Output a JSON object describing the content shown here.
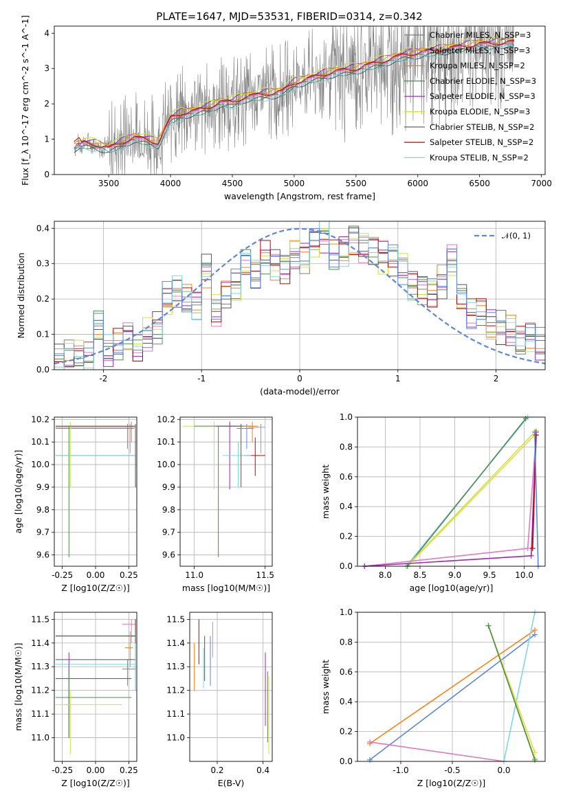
{
  "figure": {
    "title": "PLATE=1647, MJD=53531, FIBERID=0314, z=0.342"
  },
  "colors": {
    "grey": "#7f7f7f",
    "orange": "#ff7f0e",
    "lightorange": "#f28e2b",
    "purple": "#9c27b0",
    "yellowgreen": "#c7e83a",
    "darkgrey": "#555555",
    "red": "#c00000",
    "cyan": "#7fd6e6",
    "blue": "#5b86dc",
    "pink": "#e377c2",
    "green": "#4c8a4c",
    "gold": "#e8d84a"
  },
  "chart_data": [
    {
      "id": "spectrum",
      "type": "line",
      "title": "PLATE=1647, MJD=53531, FIBERID=0314, z=0.342",
      "xlabel": "wavelength [Angstrom, rest frame]",
      "ylabel": "Flux [f_λ 10^-17 erg cm^-2 s^-1 A^-1]",
      "xlim": [
        3060,
        7030
      ],
      "ylim": [
        0,
        4.2
      ],
      "xticks": [
        3500,
        4000,
        4500,
        5000,
        5500,
        6000,
        6500,
        7000
      ],
      "yticks": [
        0,
        1,
        2,
        3,
        4
      ],
      "grid": false,
      "legend_position": "top-right",
      "series": [
        {
          "name": "Chabrier MILES, N_SSP=3",
          "color": "#7f7f7f"
        },
        {
          "name": "Salpeter MILES, N_SSP=3",
          "color": "#e377c2"
        },
        {
          "name": "Kroupa MILES, N_SSP=2",
          "color": "#ff7f0e"
        },
        {
          "name": "Chabrier ELODIE, N_SSP=3",
          "color": "#4c8a4c"
        },
        {
          "name": "Salpeter ELODIE, N_SSP=3",
          "color": "#9c27b0"
        },
        {
          "name": "Kroupa ELODIE, N_SSP=3",
          "color": "#c7e83a"
        },
        {
          "name": "Chabrier STELIB, N_SSP=2",
          "color": "#555555"
        },
        {
          "name": "Salpeter STELIB, N_SSP=2",
          "color": "#c00000"
        },
        {
          "name": "Kroupa STELIB, N_SSP=2",
          "color": "#7fd6e6"
        }
      ],
      "model_curve": {
        "x": [
          3220,
          3300,
          3400,
          3500,
          3600,
          3700,
          3800,
          3900,
          4000,
          4100,
          4200,
          4300,
          4400,
          4500,
          4600,
          4700,
          4800,
          4900,
          5000,
          5100,
          5200,
          5300,
          5400,
          5500,
          5600,
          5700,
          5800,
          5900,
          6000,
          6100,
          6200,
          6300,
          6400,
          6500,
          6600,
          6700,
          6780
        ],
        "y": [
          0.8,
          0.9,
          0.85,
          0.75,
          0.9,
          1.05,
          1.0,
          0.9,
          1.6,
          1.75,
          1.8,
          1.9,
          2.05,
          2.05,
          2.2,
          2.25,
          2.3,
          2.35,
          2.6,
          2.7,
          2.8,
          2.9,
          2.95,
          3.0,
          3.1,
          3.2,
          3.3,
          3.4,
          3.45,
          3.5,
          3.55,
          3.6,
          3.65,
          3.7,
          3.7,
          3.75,
          3.75
        ]
      }
    },
    {
      "id": "residuals",
      "type": "line",
      "xlabel": "(data-model)/error",
      "ylabel": "Normed distribution",
      "xlim": [
        -2.5,
        2.5
      ],
      "ylim": [
        0,
        0.42
      ],
      "xticks": [
        -2,
        -1,
        0,
        1,
        2
      ],
      "yticks": [
        0.0,
        0.1,
        0.2,
        0.3,
        0.4
      ],
      "grid": true,
      "legend_position": "top-right",
      "gaussian": {
        "name": "𝒩(0, 1)",
        "color": "#5b86dc",
        "mean": 0,
        "sigma": 1
      },
      "histogram": {
        "bin_edges": [
          -2.5,
          -2.4,
          -2.3,
          -2.2,
          -2.1,
          -2.0,
          -1.9,
          -1.8,
          -1.7,
          -1.6,
          -1.5,
          -1.4,
          -1.3,
          -1.2,
          -1.1,
          -1.0,
          -0.9,
          -0.8,
          -0.7,
          -0.6,
          -0.5,
          -0.4,
          -0.3,
          -0.2,
          -0.1,
          0.0,
          0.1,
          0.2,
          0.3,
          0.4,
          0.5,
          0.6,
          0.7,
          0.8,
          0.9,
          1.0,
          1.1,
          1.2,
          1.3,
          1.4,
          1.5,
          1.6,
          1.7,
          1.8,
          1.9,
          2.0,
          2.1,
          2.2,
          2.3,
          2.4,
          2.5
        ],
        "values": [
          0.025,
          0.04,
          0.045,
          0.03,
          0.12,
          0.05,
          0.07,
          0.09,
          0.06,
          0.1,
          0.12,
          0.2,
          0.22,
          0.2,
          0.18,
          0.28,
          0.17,
          0.22,
          0.24,
          0.3,
          0.27,
          0.32,
          0.3,
          0.29,
          0.33,
          0.32,
          0.36,
          0.38,
          0.33,
          0.34,
          0.37,
          0.35,
          0.34,
          0.32,
          0.31,
          0.29,
          0.24,
          0.23,
          0.22,
          0.25,
          0.31,
          0.2,
          0.16,
          0.17,
          0.13,
          0.12,
          0.11,
          0.08,
          0.09,
          0.07
        ]
      }
    },
    {
      "id": "age-vs-Z",
      "type": "scatter",
      "xlabel": "Z [log10(Z/Z☉)]",
      "ylabel": "age [log10(age/yr)]",
      "xlim": [
        -0.31,
        0.31
      ],
      "ylim": [
        9.55,
        10.21
      ],
      "xticks": [
        -0.25,
        0.0,
        0.25
      ],
      "yticks": [
        9.6,
        9.7,
        9.8,
        9.9,
        10.0,
        10.1,
        10.2
      ],
      "grid": true
    },
    {
      "id": "age-vs-mass",
      "type": "scatter",
      "xlabel": "mass [log10(M/M☉)]",
      "ylabel": "",
      "xlim": [
        10.9,
        11.55
      ],
      "ylim": [
        9.55,
        10.21
      ],
      "xticks": [
        11.0,
        11.5
      ],
      "yticks": [
        9.6,
        9.7,
        9.8,
        9.9,
        10.0,
        10.1,
        10.2
      ],
      "grid": true
    },
    {
      "id": "weight-vs-age",
      "type": "line",
      "xlabel": "age [log10(age/yr)]",
      "ylabel": "mass weight",
      "xlim": [
        7.6,
        10.3
      ],
      "ylim": [
        0,
        1.0
      ],
      "xticks": [
        8.0,
        8.5,
        9.0,
        9.5,
        10.0
      ],
      "yticks": [
        0.0,
        0.2,
        0.4,
        0.6,
        0.8,
        1.0
      ],
      "grid": true,
      "series": [
        {
          "color": "#7fd6e6",
          "x": [
            8.3,
            10.05
          ],
          "y": [
            0.0,
            1.0
          ]
        },
        {
          "color": "#4c8a4c",
          "x": [
            8.32,
            10.02
          ],
          "y": [
            0.0,
            0.99
          ]
        },
        {
          "color": "#c7e83a",
          "x": [
            8.35,
            10.17
          ],
          "y": [
            0.02,
            0.91
          ]
        },
        {
          "color": "#e8d84a",
          "x": [
            8.36,
            10.15
          ],
          "y": [
            0.02,
            0.88
          ]
        },
        {
          "color": "#e377c2",
          "x": [
            7.7,
            10.05,
            10.17
          ],
          "y": [
            0.0,
            0.12,
            0.88
          ]
        },
        {
          "color": "#9c27b0",
          "x": [
            7.7,
            10.1,
            10.17
          ],
          "y": [
            0.0,
            0.07,
            0.9
          ]
        },
        {
          "color": "#c00000",
          "x": [
            10.12,
            10.17
          ],
          "y": [
            0.12,
            0.88
          ]
        },
        {
          "color": "#5b86dc",
          "x": [
            10.15,
            10.2
          ],
          "y": [
            0.9,
            0.0
          ]
        }
      ]
    },
    {
      "id": "mass-vs-Z",
      "type": "scatter",
      "xlabel": "Z [log10(Z/Z☉)]",
      "ylabel": "mass [log10(M/M☉)]",
      "xlim": [
        -0.31,
        0.31
      ],
      "ylim": [
        10.9,
        11.53
      ],
      "xticks": [
        -0.25,
        0.0,
        0.25
      ],
      "yticks": [
        11.0,
        11.1,
        11.2,
        11.3,
        11.4,
        11.5
      ],
      "grid": true
    },
    {
      "id": "mass-vs-ebv",
      "type": "scatter",
      "xlabel": "E(B-V)",
      "ylabel": "",
      "xlim": [
        0.08,
        0.44
      ],
      "ylim": [
        10.9,
        11.53
      ],
      "xticks": [
        0.2,
        0.4
      ],
      "yticks": [
        11.0,
        11.1,
        11.2,
        11.3,
        11.4,
        11.5
      ],
      "grid": true
    },
    {
      "id": "weight-vs-Z",
      "type": "line",
      "xlabel": "Z [log10(Z/Z☉)]",
      "ylabel": "mass weight",
      "xlim": [
        -1.42,
        0.4
      ],
      "ylim": [
        0,
        1.0
      ],
      "xticks": [
        -1.0,
        -0.5,
        0.0
      ],
      "yticks": [
        0.0,
        0.2,
        0.4,
        0.6,
        0.8,
        1.0
      ],
      "grid": true,
      "series": [
        {
          "color": "#ff7f0e",
          "x": [
            -1.3,
            0.3
          ],
          "y": [
            0.12,
            0.88
          ]
        },
        {
          "color": "#5b86dc",
          "x": [
            -1.3,
            0.3
          ],
          "y": [
            0.01,
            0.85
          ]
        },
        {
          "color": "#e377c2",
          "x": [
            -1.3,
            0.0
          ],
          "y": [
            0.13,
            0.0
          ]
        },
        {
          "color": "#7fd6e6",
          "x": [
            0.0,
            0.3
          ],
          "y": [
            0.0,
            1.0
          ]
        },
        {
          "color": "#c7e83a",
          "x": [
            -0.15,
            0.3
          ],
          "y": [
            0.91,
            0.02
          ]
        },
        {
          "color": "#e8d84a",
          "x": [
            -0.15,
            0.3
          ],
          "y": [
            0.91,
            0.06
          ]
        },
        {
          "color": "#4c8a4c",
          "x": [
            -0.15,
            0.3
          ],
          "y": [
            0.91,
            0.01
          ]
        }
      ]
    }
  ]
}
